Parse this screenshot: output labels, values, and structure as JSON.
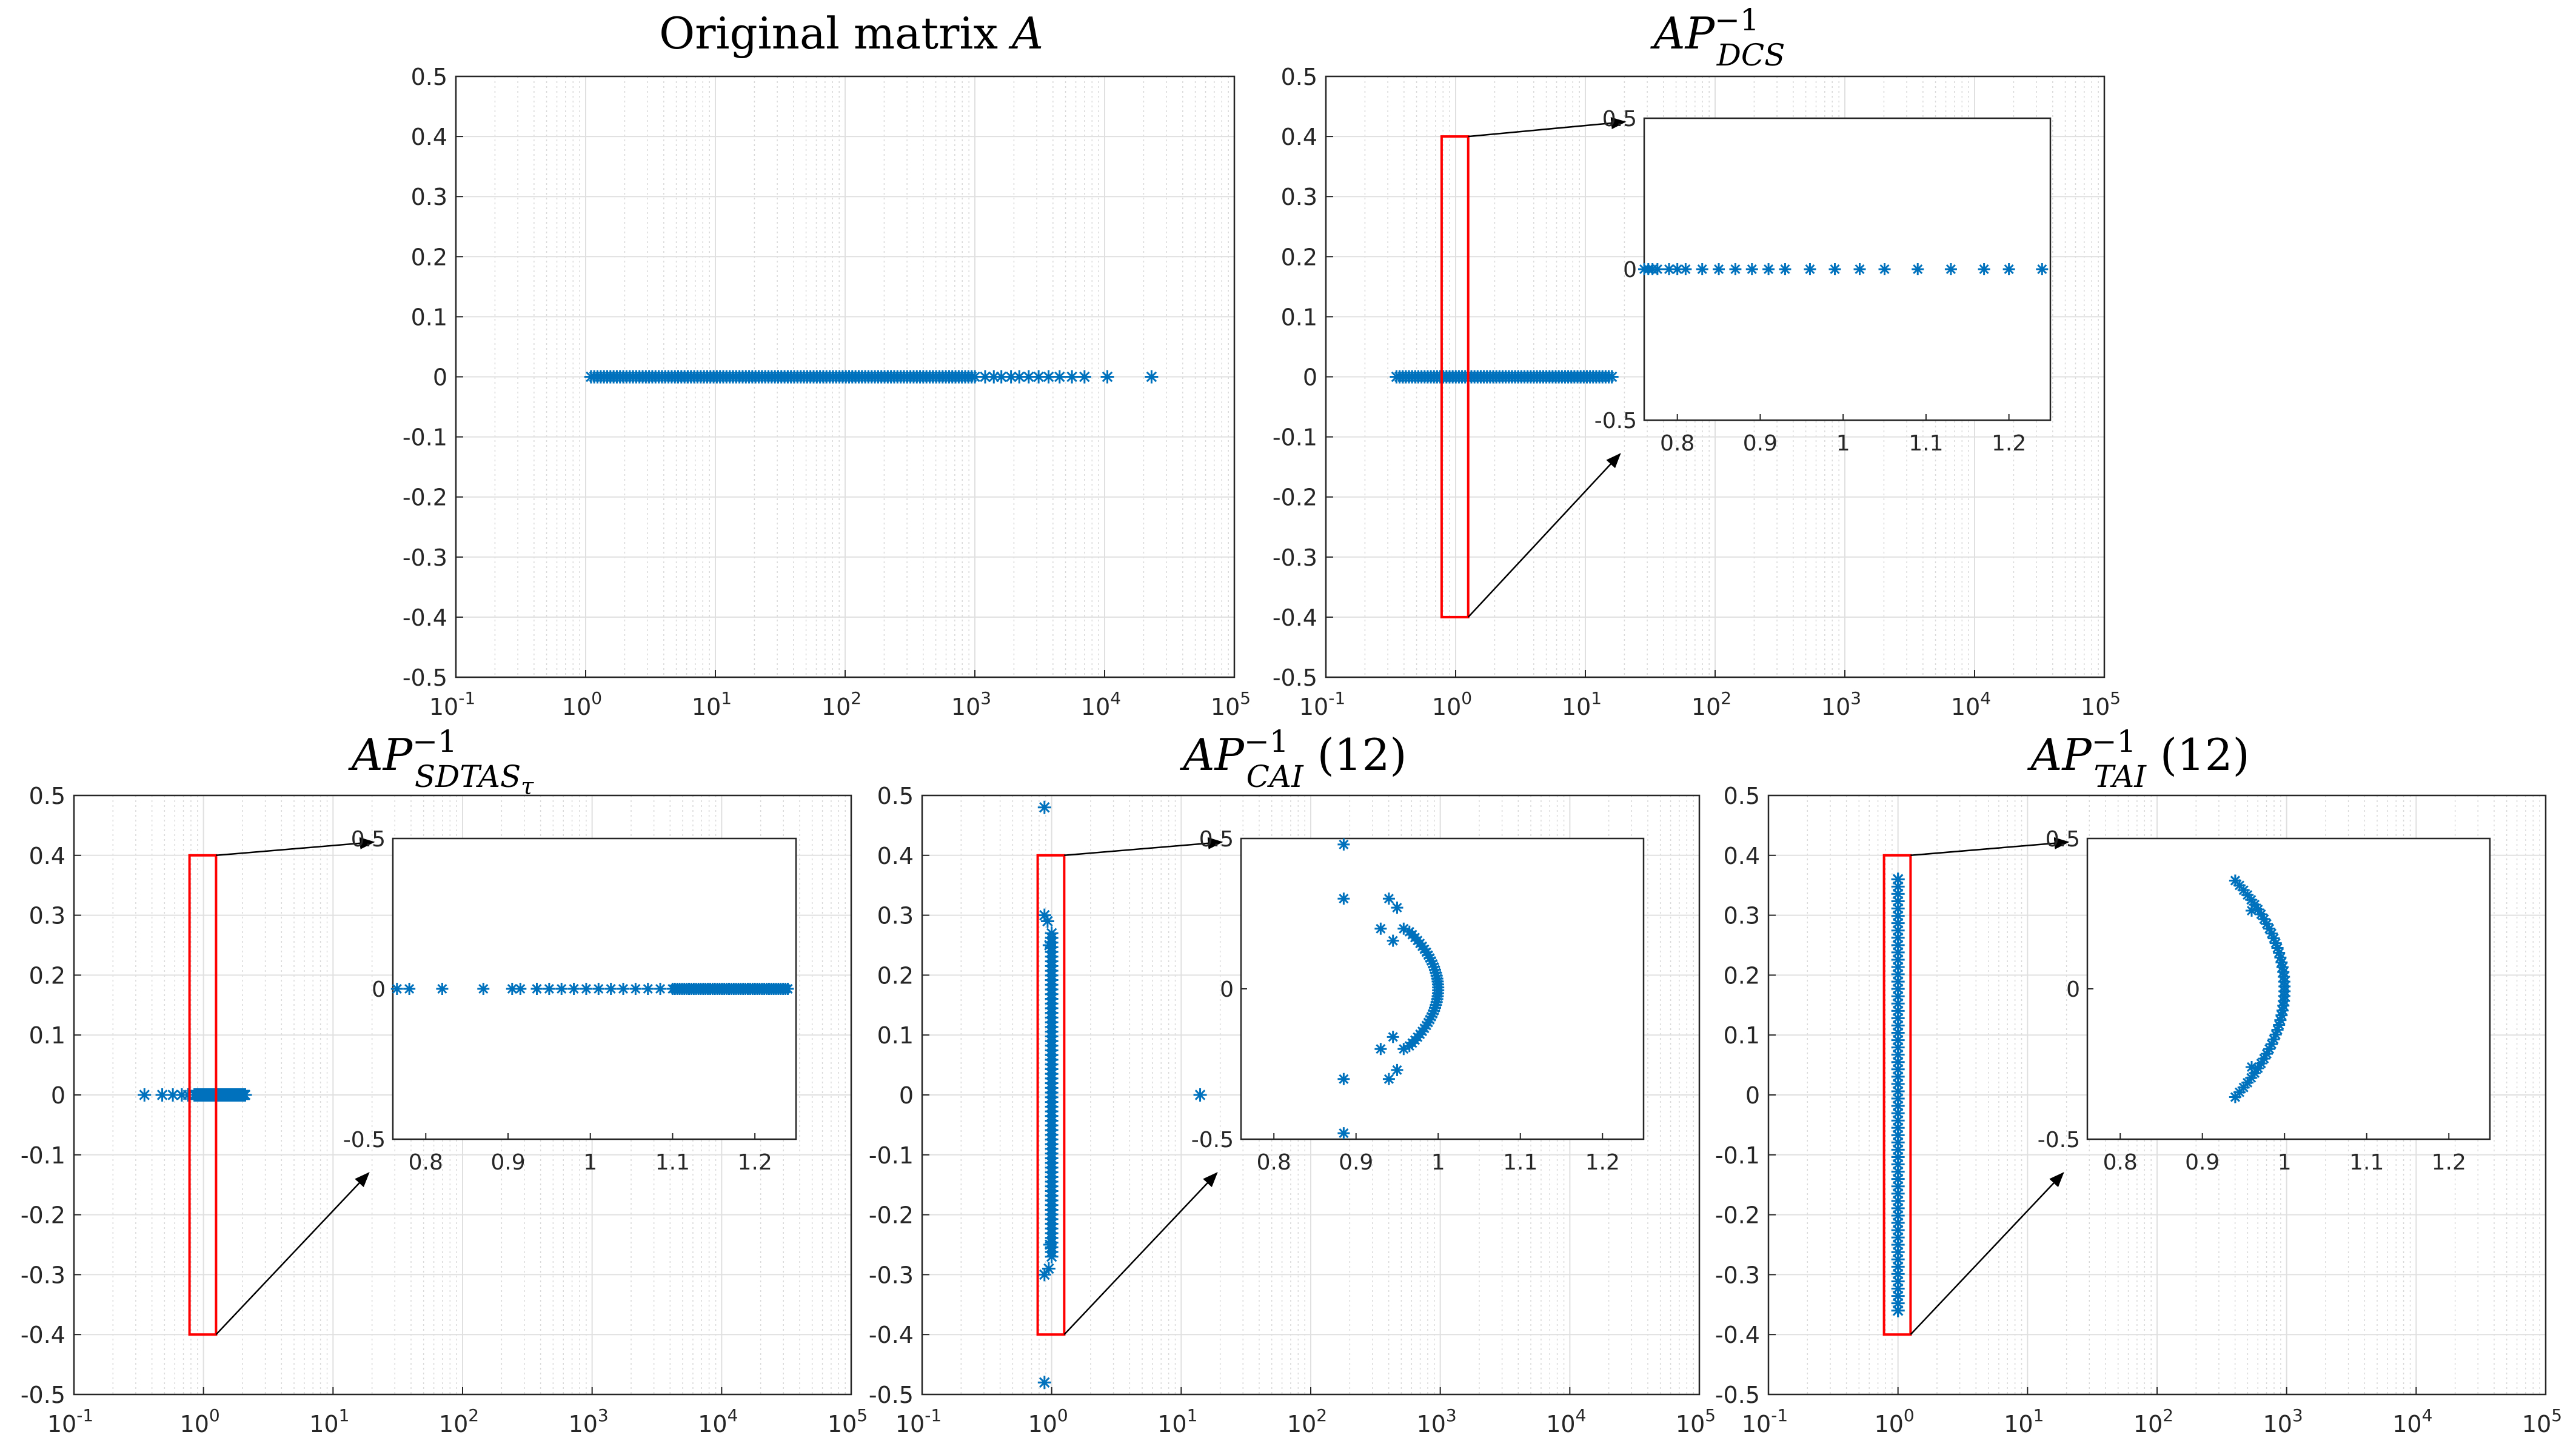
{
  "marker_color": "#0072BD",
  "highlight_color": "#FF0000",
  "panels": [
    {
      "id": "A",
      "title": {
        "main": "Original matrix ",
        "ital": "A",
        "sup": "",
        "sub": "",
        "sub2": "",
        "suffix": ""
      }
    },
    {
      "id": "DCS",
      "title": {
        "main": "",
        "ital": "AP",
        "sup": "−1",
        "sub": "DCS",
        "sub2": "",
        "suffix": ""
      }
    },
    {
      "id": "SDTAS",
      "title": {
        "main": "",
        "ital": "AP",
        "sup": "−1",
        "sub": "SDTAS",
        "sub2": "τ",
        "suffix": ""
      }
    },
    {
      "id": "CAI",
      "title": {
        "main": "",
        "ital": "AP",
        "sup": "−1",
        "sub": "CAI",
        "sub2": "",
        "suffix": " (12)"
      }
    },
    {
      "id": "TAI",
      "title": {
        "main": "",
        "ital": "AP",
        "sup": "−1",
        "sub": "TAI",
        "sub2": "",
        "suffix": " (12)"
      }
    }
  ],
  "axis_labels": {
    "main_x_ticks": [
      {
        "base": "10",
        "exp": "-1"
      },
      {
        "base": "10",
        "exp": "0"
      },
      {
        "base": "10",
        "exp": "1"
      },
      {
        "base": "10",
        "exp": "2"
      },
      {
        "base": "10",
        "exp": "3"
      },
      {
        "base": "10",
        "exp": "4"
      },
      {
        "base": "10",
        "exp": "5"
      }
    ],
    "main_y_ticks": [
      "0.5",
      "0.4",
      "0.3",
      "0.2",
      "0.1",
      "0",
      "-0.1",
      "-0.2",
      "-0.3",
      "-0.4",
      "-0.5"
    ],
    "inset_x_ticks": [
      "0.8",
      "0.9",
      "1",
      "1.1",
      "1.2"
    ],
    "inset_y_ticks": [
      "0.5",
      "0",
      "-0.5"
    ]
  },
  "chart_data": [
    {
      "type": "scatter",
      "title": "Original matrix A",
      "xscale": "log",
      "xlim": [
        0.1,
        100000
      ],
      "ylim": [
        -0.5,
        0.5
      ],
      "grid": true,
      "points": {
        "x_log_min": 1.1,
        "x_log_max": 1000,
        "count": 120,
        "y": 0,
        "tail_x": [
          1200,
          1400,
          1600,
          1900,
          2200,
          2600,
          3100,
          3700,
          4500,
          5600,
          7000,
          10500,
          23000
        ]
      }
    },
    {
      "type": "scatter",
      "title": "AP^-1_DCS",
      "xscale": "log",
      "xlim": [
        0.1,
        100000
      ],
      "ylim": [
        -0.5,
        0.5
      ],
      "grid": true,
      "points": {
        "x_log_min": 0.35,
        "x_log_max": 16,
        "count": 70,
        "y": 0
      },
      "highlight_box": {
        "x": [
          0.78,
          1.25
        ],
        "y": [
          -0.4,
          0.4
        ]
      },
      "inset": {
        "xlim": [
          0.76,
          1.25
        ],
        "ylim": [
          -0.5,
          0.5
        ],
        "points": [
          {
            "x": 0.76,
            "y": 0
          },
          {
            "x": 0.765,
            "y": 0
          },
          {
            "x": 0.77,
            "y": 0
          },
          {
            "x": 0.776,
            "y": 0
          },
          {
            "x": 0.79,
            "y": 0
          },
          {
            "x": 0.8,
            "y": 0
          },
          {
            "x": 0.81,
            "y": 0
          },
          {
            "x": 0.83,
            "y": 0
          },
          {
            "x": 0.85,
            "y": 0
          },
          {
            "x": 0.87,
            "y": 0
          },
          {
            "x": 0.89,
            "y": 0
          },
          {
            "x": 0.91,
            "y": 0
          },
          {
            "x": 0.93,
            "y": 0
          },
          {
            "x": 0.96,
            "y": 0
          },
          {
            "x": 0.99,
            "y": 0
          },
          {
            "x": 1.02,
            "y": 0
          },
          {
            "x": 1.05,
            "y": 0
          },
          {
            "x": 1.09,
            "y": 0
          },
          {
            "x": 1.13,
            "y": 0
          },
          {
            "x": 1.17,
            "y": 0
          },
          {
            "x": 1.2,
            "y": 0
          },
          {
            "x": 1.24,
            "y": 0
          }
        ]
      }
    },
    {
      "type": "scatter",
      "title": "AP^-1_SDTAS_tau",
      "xscale": "log",
      "xlim": [
        0.1,
        100000
      ],
      "ylim": [
        -0.5,
        0.5
      ],
      "grid": true,
      "points": {
        "x_list": [
          0.35,
          0.48,
          0.58,
          0.68,
          0.76
        ],
        "x_log_min": 0.85,
        "x_log_max": 2.1,
        "count": 60,
        "y": 0
      },
      "highlight_box": {
        "x": [
          0.78,
          1.25
        ],
        "y": [
          -0.4,
          0.4
        ]
      },
      "inset": {
        "xlim": [
          0.76,
          1.25
        ],
        "ylim": [
          -0.5,
          0.5
        ],
        "points": [
          {
            "x": 0.765,
            "y": 0
          },
          {
            "x": 0.78,
            "y": 0
          },
          {
            "x": 0.82,
            "y": 0
          },
          {
            "x": 0.87,
            "y": 0
          },
          {
            "x": 0.905,
            "y": 0
          },
          {
            "x": 0.915,
            "y": 0
          },
          {
            "x": 0.935,
            "y": 0
          },
          {
            "x": 0.95,
            "y": 0
          },
          {
            "x": 0.965,
            "y": 0
          },
          {
            "x": 0.98,
            "y": 0
          },
          {
            "x": 0.995,
            "y": 0
          },
          {
            "x": 1.01,
            "y": 0
          },
          {
            "x": 1.025,
            "y": 0
          },
          {
            "x": 1.04,
            "y": 0
          },
          {
            "x": 1.055,
            "y": 0
          },
          {
            "x": 1.07,
            "y": 0
          },
          {
            "x": 1.085,
            "y": 0
          },
          {
            "x": 1.1,
            "y": 0
          },
          {
            "x": 1.12,
            "y": 0
          },
          {
            "x": 1.14,
            "y": 0
          },
          {
            "x": 1.16,
            "y": 0
          },
          {
            "x": 1.18,
            "y": 0
          },
          {
            "x": 1.2,
            "y": 0
          },
          {
            "x": 1.22,
            "y": 0
          },
          {
            "x": 1.24,
            "y": 0
          }
        ],
        "dense_segment": {
          "x": [
            1.1,
            1.24
          ],
          "count": 50,
          "y": 0
        }
      }
    },
    {
      "type": "scatter",
      "title": "AP^-1_CAI (12)",
      "xscale": "log",
      "xlim": [
        0.1,
        100000
      ],
      "ylim": [
        -0.5,
        0.5
      ],
      "grid": true,
      "points": {
        "x_list": [
          0.88,
          0.88,
          0.88,
          0.88,
          0.93,
          0.95,
          0.96,
          0.97,
          14
        ],
        "y_list": [
          0.48,
          -0.48,
          0.3,
          -0.3,
          0.29,
          -0.29,
          0.25,
          -0.25,
          0
        ],
        "column": {
          "x": 1.0,
          "y": [
            -0.27,
            0.27
          ],
          "count": 70
        }
      },
      "highlight_box": {
        "x": [
          0.78,
          1.25
        ],
        "y": [
          -0.4,
          0.4
        ]
      },
      "inset": {
        "xlim": [
          0.76,
          1.25
        ],
        "ylim": [
          -0.5,
          0.5
        ],
        "points": [
          {
            "x": 0.885,
            "y": 0.48
          },
          {
            "x": 0.885,
            "y": -0.48
          },
          {
            "x": 0.885,
            "y": 0.3
          },
          {
            "x": 0.885,
            "y": -0.3
          },
          {
            "x": 0.94,
            "y": 0.3
          },
          {
            "x": 0.94,
            "y": -0.3
          },
          {
            "x": 0.95,
            "y": 0.27
          },
          {
            "x": 0.95,
            "y": -0.27
          },
          {
            "x": 0.93,
            "y": 0.2
          },
          {
            "x": 0.93,
            "y": -0.2
          },
          {
            "x": 0.958,
            "y": 0.2
          },
          {
            "x": 0.958,
            "y": -0.2
          },
          {
            "x": 0.945,
            "y": 0.16
          },
          {
            "x": 0.945,
            "y": -0.16
          }
        ],
        "arc": {
          "center_x": 1.0,
          "radius_y": 0.19,
          "x_min": 0.965,
          "count": 40
        }
      }
    },
    {
      "type": "scatter",
      "title": "AP^-1_TAI (12)",
      "xscale": "log",
      "xlim": [
        0.1,
        100000
      ],
      "ylim": [
        -0.5,
        0.5
      ],
      "grid": true,
      "points": {
        "column": {
          "x": 1.0,
          "y": [
            -0.36,
            0.36
          ],
          "count": 60
        },
        "x_list": [
          1.0,
          1.0
        ],
        "y_list": [
          0.36,
          -0.36
        ]
      },
      "highlight_box": {
        "x": [
          0.78,
          1.25
        ],
        "y": [
          -0.4,
          0.4
        ]
      },
      "inset": {
        "xlim": [
          0.76,
          1.25
        ],
        "ylim": [
          -0.5,
          0.5
        ],
        "points": [
          {
            "x": 0.94,
            "y": 0.36
          },
          {
            "x": 0.94,
            "y": -0.36
          },
          {
            "x": 0.96,
            "y": 0.26
          },
          {
            "x": 0.96,
            "y": -0.26
          }
        ],
        "arc": {
          "center_x": 1.0,
          "radius_y": 0.36,
          "x_min": 0.94,
          "count": 46
        }
      }
    }
  ]
}
